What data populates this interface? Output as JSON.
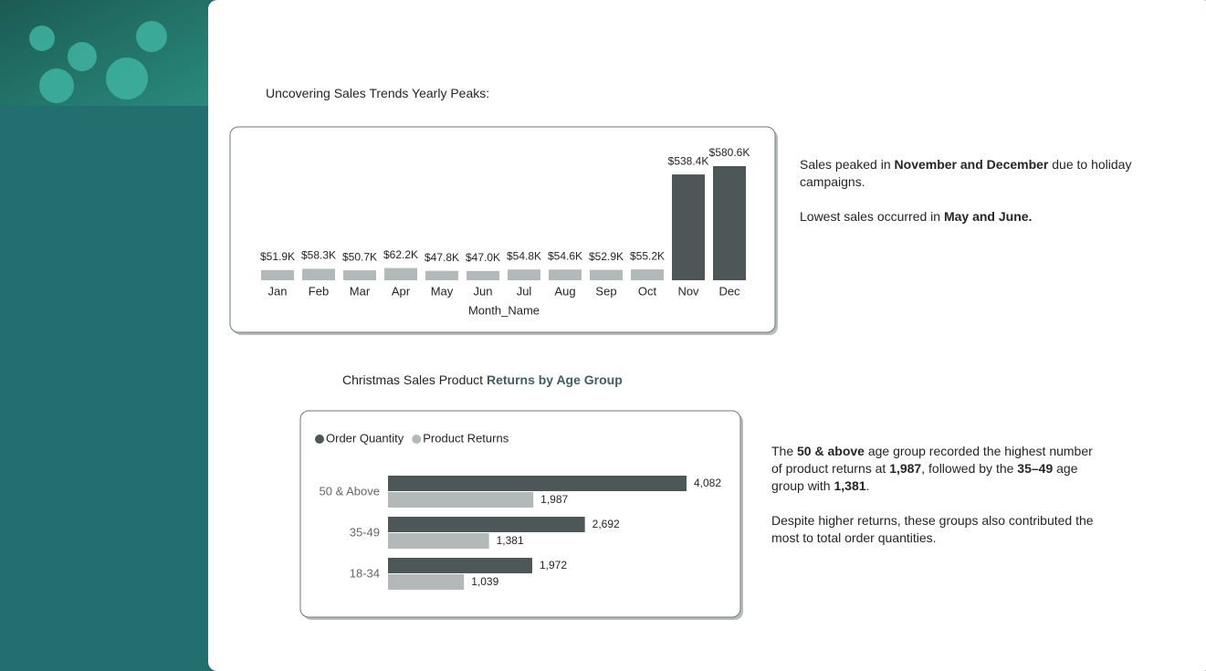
{
  "chart_data": [
    {
      "type": "bar",
      "title": [
        "Uncovering Sales Trends Yearly Peaks:"
      ],
      "x_label": "Month_Name",
      "categories": [
        "Jan",
        "Feb",
        "Mar",
        "Apr",
        "May",
        "Jun",
        "Jul",
        "Aug",
        "Sep",
        "Oct",
        "Nov",
        "Dec"
      ],
      "values": [
        51.9,
        58.3,
        50.7,
        62.2,
        47.8,
        47.0,
        54.8,
        54.6,
        52.9,
        55.2,
        538.4,
        580.6
      ],
      "value_labels": [
        "$51.9K",
        "$58.3K",
        "$50.7K",
        "$62.2K",
        "$47.8K",
        "$47.0K",
        "$54.8K",
        "$54.6K",
        "$52.9K",
        "$55.2K",
        "$538.4K",
        "$580.6K"
      ],
      "colors": [
        "#b3b8b8",
        "#b3b8b8",
        "#b3b8b8",
        "#b3b8b8",
        "#b3b8b8",
        "#b3b8b8",
        "#b3b8b8",
        "#b3b8b8",
        "#b3b8b8",
        "#b3b8b8",
        "#4d5757",
        "#4d5757"
      ],
      "notes": [
        [
          "Sales peaked in ",
          "November and December",
          " due to holiday campaigns."
        ],
        [
          "Lowest sales occurred in ",
          "May and June."
        ]
      ]
    },
    {
      "type": "hbar",
      "title": [
        "Christmas Sales Product ",
        "Returns by Age Group"
      ],
      "categories": [
        "50 & Above",
        "35-49",
        "18-34"
      ],
      "series": [
        {
          "name": "Order Quantity",
          "color": "#4d5757",
          "values": [
            4082,
            2692,
            1972
          ],
          "value_labels": [
            "4,082",
            "2,692",
            "1,972"
          ]
        },
        {
          "name": "Product Returns",
          "color": "#b3b8b8",
          "values": [
            1987,
            1381,
            1039
          ],
          "value_labels": [
            "1,987",
            "1,381",
            "1,039"
          ]
        }
      ],
      "notes": [
        [
          "The ",
          "50 & above",
          " age group recorded the highest number of product returns at ",
          "1,987",
          ", followed by the ",
          "35–49",
          " age group with ",
          "1,381",
          "."
        ],
        [
          "Despite higher returns, these groups also contributed the most to total order quantities."
        ]
      ]
    }
  ]
}
